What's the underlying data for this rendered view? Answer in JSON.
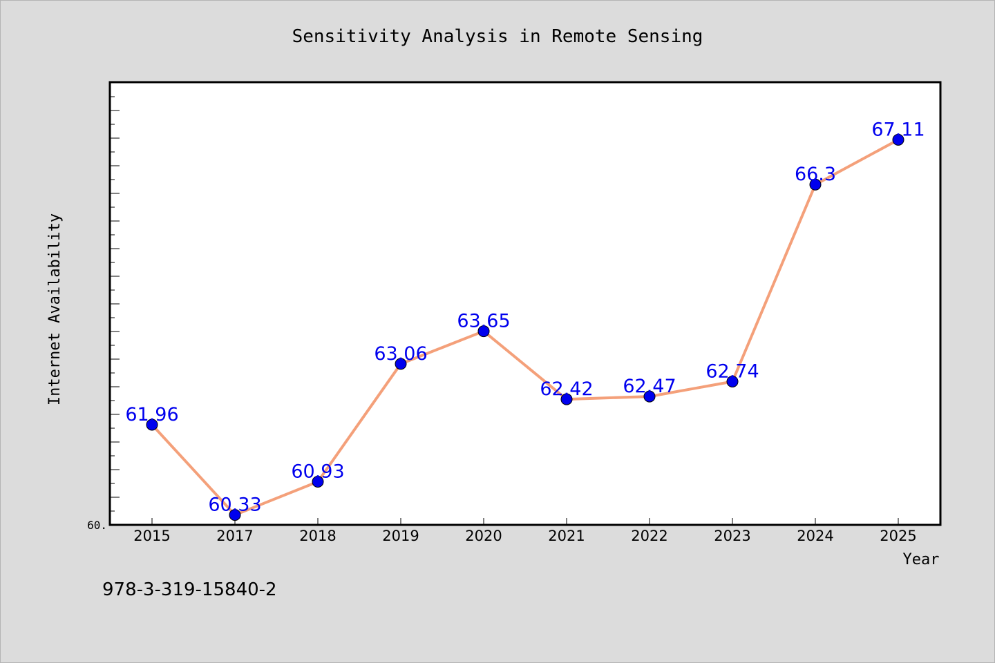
{
  "chart_data": {
    "type": "line",
    "title": "Sensitivity Analysis in Remote Sensing",
    "xlabel": "Year",
    "ylabel": "Internet Availability",
    "categories": [
      "2015",
      "2017",
      "2018",
      "2019",
      "2020",
      "2021",
      "2022",
      "2023",
      "2024",
      "2025"
    ],
    "series": [
      {
        "values": [
          61.96,
          60.33,
          60.93,
          63.06,
          63.65,
          62.42,
          62.47,
          62.74,
          66.3,
          67.11
        ],
        "labels": [
          "61.96",
          "60.33",
          "60.93",
          "63.06",
          "63.65",
          "62.42",
          "62.47",
          "62.74",
          "66.3",
          "67.11"
        ]
      }
    ],
    "ylim": [
      60.15,
      68.15
    ],
    "y_tick_label": "60.",
    "grid": false,
    "line_color": "#f4a07a",
    "marker_color": "#0000ee",
    "label_color": "#0000ee",
    "frame_background": "#ffffff",
    "page_background": "#dcdcdc"
  },
  "footnote": "978-3-319-15840-2"
}
